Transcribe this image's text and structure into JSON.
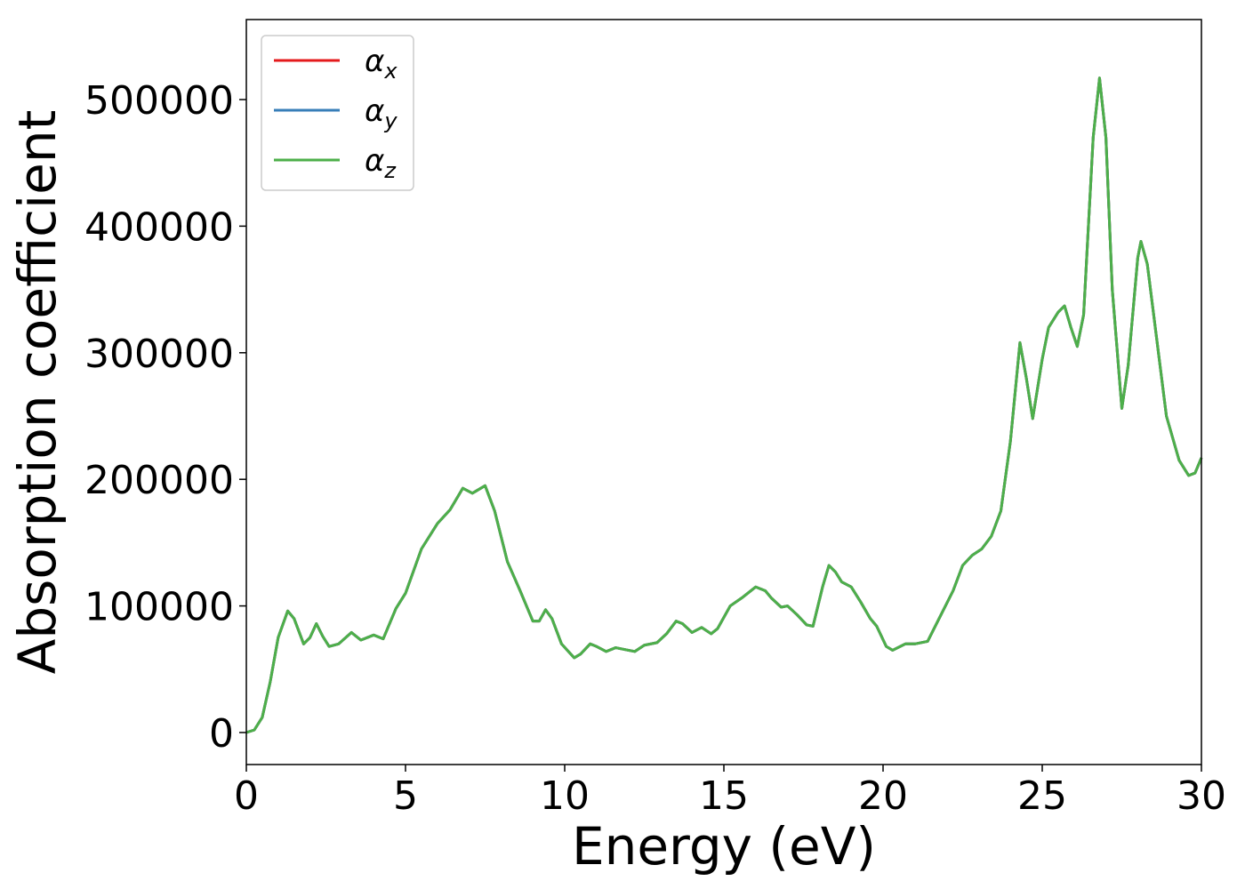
{
  "chart_data": {
    "type": "line",
    "xlabel": "Energy (eV)",
    "ylabel": "Absorption coefficient",
    "x": [
      0,
      0.25,
      0.5,
      0.75,
      1.0,
      1.3,
      1.5,
      1.8,
      2.0,
      2.2,
      2.4,
      2.6,
      2.9,
      3.3,
      3.6,
      4.0,
      4.3,
      4.7,
      5.0,
      5.5,
      6.0,
      6.4,
      6.8,
      7.1,
      7.5,
      7.8,
      8.2,
      8.6,
      9.0,
      9.2,
      9.4,
      9.6,
      9.9,
      10.3,
      10.5,
      10.8,
      11.0,
      11.3,
      11.6,
      12.0,
      12.2,
      12.5,
      12.9,
      13.2,
      13.5,
      13.7,
      14.0,
      14.3,
      14.6,
      14.8,
      15.2,
      15.6,
      16.0,
      16.3,
      16.5,
      16.8,
      17.0,
      17.3,
      17.6,
      17.8,
      18.1,
      18.3,
      18.5,
      18.7,
      19.0,
      19.3,
      19.6,
      19.8,
      20.1,
      20.3,
      20.7,
      21.0,
      21.4,
      21.8,
      22.2,
      22.5,
      22.8,
      23.1,
      23.4,
      23.7,
      24.0,
      24.3,
      24.5,
      24.7,
      25.0,
      25.2,
      25.5,
      25.7,
      25.9,
      26.1,
      26.3,
      26.6,
      26.8,
      27.0,
      27.2,
      27.5,
      27.7,
      28.0,
      28.1,
      28.3,
      28.6,
      28.9,
      29.3,
      29.6,
      29.8,
      30.0
    ],
    "series": [
      {
        "name": "αx",
        "color": "#e41a1c",
        "values": [
          0,
          2000,
          12000,
          40000,
          75000,
          96000,
          90000,
          70000,
          75000,
          86000,
          76000,
          68000,
          70000,
          79000,
          73000,
          77000,
          74000,
          98000,
          110000,
          145000,
          165000,
          176000,
          193000,
          189000,
          195000,
          175000,
          135000,
          112000,
          88000,
          88000,
          97000,
          90000,
          70000,
          59000,
          62000,
          70000,
          68000,
          64000,
          67000,
          65000,
          64000,
          69000,
          71000,
          78000,
          88000,
          86000,
          79000,
          83000,
          78000,
          82000,
          100000,
          107000,
          115000,
          112000,
          106000,
          99000,
          100000,
          93000,
          85000,
          84000,
          115000,
          132000,
          127000,
          119000,
          115000,
          103000,
          90000,
          84000,
          68000,
          65000,
          70000,
          70000,
          72000,
          92000,
          112000,
          132000,
          140000,
          145000,
          155000,
          175000,
          230000,
          308000,
          280000,
          248000,
          295000,
          320000,
          332000,
          337000,
          320000,
          305000,
          330000,
          470000,
          517000,
          470000,
          350000,
          256000,
          290000,
          375000,
          388000,
          370000,
          310000,
          250000,
          215000,
          203000,
          205000,
          217000
        ]
      },
      {
        "name": "αy",
        "color": "#377eb8",
        "values": [
          0,
          2000,
          12000,
          40000,
          75000,
          96000,
          90000,
          70000,
          75000,
          86000,
          76000,
          68000,
          70000,
          79000,
          73000,
          77000,
          74000,
          98000,
          110000,
          145000,
          165000,
          176000,
          193000,
          189000,
          195000,
          175000,
          135000,
          112000,
          88000,
          88000,
          97000,
          90000,
          70000,
          59000,
          62000,
          70000,
          68000,
          64000,
          67000,
          65000,
          64000,
          69000,
          71000,
          78000,
          88000,
          86000,
          79000,
          83000,
          78000,
          82000,
          100000,
          107000,
          115000,
          112000,
          106000,
          99000,
          100000,
          93000,
          85000,
          84000,
          115000,
          132000,
          127000,
          119000,
          115000,
          103000,
          90000,
          84000,
          68000,
          65000,
          70000,
          70000,
          72000,
          92000,
          112000,
          132000,
          140000,
          145000,
          155000,
          175000,
          230000,
          308000,
          280000,
          248000,
          295000,
          320000,
          332000,
          337000,
          320000,
          305000,
          330000,
          470000,
          517000,
          470000,
          350000,
          256000,
          290000,
          375000,
          388000,
          370000,
          310000,
          250000,
          215000,
          203000,
          205000,
          217000
        ]
      },
      {
        "name": "αz",
        "color": "#4daf4a",
        "values": [
          0,
          2000,
          12000,
          40000,
          75000,
          96000,
          90000,
          70000,
          75000,
          86000,
          76000,
          68000,
          70000,
          79000,
          73000,
          77000,
          74000,
          98000,
          110000,
          145000,
          165000,
          176000,
          193000,
          189000,
          195000,
          175000,
          135000,
          112000,
          88000,
          88000,
          97000,
          90000,
          70000,
          59000,
          62000,
          70000,
          68000,
          64000,
          67000,
          65000,
          64000,
          69000,
          71000,
          78000,
          88000,
          86000,
          79000,
          83000,
          78000,
          82000,
          100000,
          107000,
          115000,
          112000,
          106000,
          99000,
          100000,
          93000,
          85000,
          84000,
          115000,
          132000,
          127000,
          119000,
          115000,
          103000,
          90000,
          84000,
          68000,
          65000,
          70000,
          70000,
          72000,
          92000,
          112000,
          132000,
          140000,
          145000,
          155000,
          175000,
          230000,
          308000,
          280000,
          248000,
          295000,
          320000,
          332000,
          337000,
          320000,
          305000,
          330000,
          470000,
          517000,
          470000,
          350000,
          256000,
          290000,
          375000,
          388000,
          370000,
          310000,
          250000,
          215000,
          203000,
          205000,
          217000
        ]
      }
    ],
    "xlim": [
      0,
      30
    ],
    "xticks": [
      0,
      5,
      10,
      15,
      20,
      25,
      30
    ],
    "ylim": [
      -25300,
      563200
    ],
    "yticks": [
      0,
      100000,
      200000,
      300000,
      400000,
      500000
    ],
    "grid": false,
    "legend": "upper left"
  }
}
